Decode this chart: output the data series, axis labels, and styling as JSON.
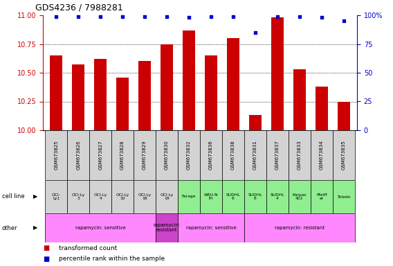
{
  "title": "GDS4236 / 7988281",
  "samples": [
    "GSM673825",
    "GSM673826",
    "GSM673827",
    "GSM673828",
    "GSM673829",
    "GSM673830",
    "GSM673832",
    "GSM673836",
    "GSM673838",
    "GSM673831",
    "GSM673837",
    "GSM673833",
    "GSM673834",
    "GSM673835"
  ],
  "bar_values": [
    10.65,
    10.57,
    10.62,
    10.46,
    10.6,
    10.75,
    10.87,
    10.65,
    10.8,
    10.13,
    10.98,
    10.53,
    10.38,
    10.25
  ],
  "dot_values": [
    99,
    99,
    99,
    99,
    99,
    99,
    98,
    99,
    99,
    85,
    99,
    99,
    98,
    95
  ],
  "ylim_left": [
    10,
    11
  ],
  "ylim_right": [
    0,
    100
  ],
  "yticks_left": [
    10,
    10.25,
    10.5,
    10.75,
    11
  ],
  "yticks_right": [
    0,
    25,
    50,
    75,
    100
  ],
  "cell_line_labels": [
    "OCI-\nLy1",
    "OCI-Ly\n3",
    "OCI-Ly\n4",
    "OCI-Ly\n10",
    "OCI-Ly\n18",
    "OCI-Ly\n19",
    "Farage",
    "WSU-N\nIH",
    "SUDHL\n6",
    "SUDHL\n8",
    "SUDHL\n4",
    "Karpas\n422",
    "Pfeiff\ner",
    "Toledo"
  ],
  "cell_bg": [
    "#d3d3d3",
    "#d3d3d3",
    "#d3d3d3",
    "#d3d3d3",
    "#d3d3d3",
    "#d3d3d3",
    "#90ee90",
    "#90ee90",
    "#90ee90",
    "#90ee90",
    "#90ee90",
    "#90ee90",
    "#90ee90",
    "#90ee90"
  ],
  "other_groups": [
    {
      "label": "rapamycin: sensitive",
      "start": 0,
      "end": 4,
      "color": "#ff88ff"
    },
    {
      "label": "rapamycin:\nresistant",
      "start": 5,
      "end": 5,
      "color": "#cc44cc"
    },
    {
      "label": "rapamycin: sensitive",
      "start": 6,
      "end": 8,
      "color": "#ff88ff"
    },
    {
      "label": "rapamycin: resistant",
      "start": 9,
      "end": 13,
      "color": "#ff88ff"
    }
  ],
  "bar_color": "#cc0000",
  "dot_color": "#0000cc",
  "left_axis_color": "#cc0000",
  "right_axis_color": "#0000cc",
  "gsm_row_color": "#d3d3d3",
  "title_fontsize": 9,
  "bar_width": 0.55
}
